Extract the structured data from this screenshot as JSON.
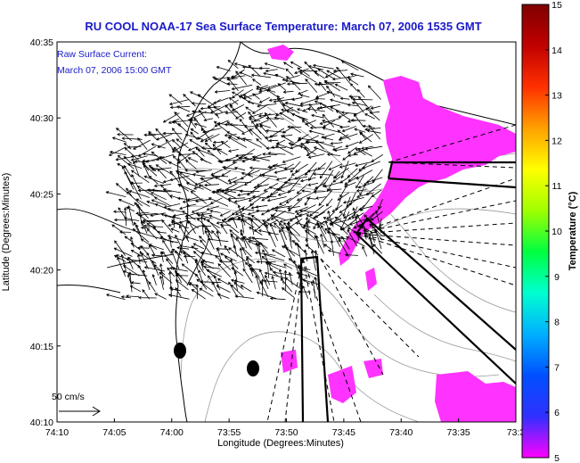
{
  "chart_data": {
    "type": "other",
    "title": "RU COOL  NOAA-17  Sea Surface Temperature:  March 07, 2006 1535 GMT",
    "annotation_lines": [
      "Raw Surface Current:",
      "March 07, 2006 15:00 GMT"
    ],
    "xlabel": "Longitude (Degrees:Minutes)",
    "ylabel": "Latitude (Degrees:Minutes)",
    "xlim_minutes": [
      -250,
      -210
    ],
    "ylim_minutes": [
      2410,
      2435
    ],
    "xticks": [
      {
        "value": -250,
        "label": "74:10"
      },
      {
        "value": -245,
        "label": "74:05"
      },
      {
        "value": -240,
        "label": "74:00"
      },
      {
        "value": -235,
        "label": "73:55"
      },
      {
        "value": -230,
        "label": "73:50"
      },
      {
        "value": -225,
        "label": "73:45"
      },
      {
        "value": -220,
        "label": "73:40"
      },
      {
        "value": -215,
        "label": "73:35"
      },
      {
        "value": -210,
        "label": "73:3"
      }
    ],
    "yticks": [
      {
        "value": 2410,
        "label": "40:10"
      },
      {
        "value": 2415,
        "label": "40:15"
      },
      {
        "value": 2420,
        "label": "40:20"
      },
      {
        "value": 2425,
        "label": "40:25"
      },
      {
        "value": 2430,
        "label": "40:30"
      },
      {
        "value": 2435,
        "label": "40:35"
      }
    ],
    "scale_arrow_label": "50 cm/s",
    "colorbar": {
      "label": "Temperature (°C)",
      "range": [
        5,
        15
      ],
      "ticks": [
        "5",
        "6",
        "7",
        "8",
        "9",
        "10",
        "11",
        "12",
        "13",
        "14",
        "15"
      ],
      "colors": [
        "#ff00ff",
        "#3030ff",
        "#0050ff",
        "#00b0ff",
        "#00ffd0",
        "#00ff40",
        "#a0ff00",
        "#ffff00",
        "#ffa000",
        "#ff3000",
        "#c00000",
        "#800000"
      ]
    },
    "sst_patches_c": 5,
    "sst_patch_color": "#ff33ff",
    "land_color": "#ffffff",
    "grid": false
  }
}
